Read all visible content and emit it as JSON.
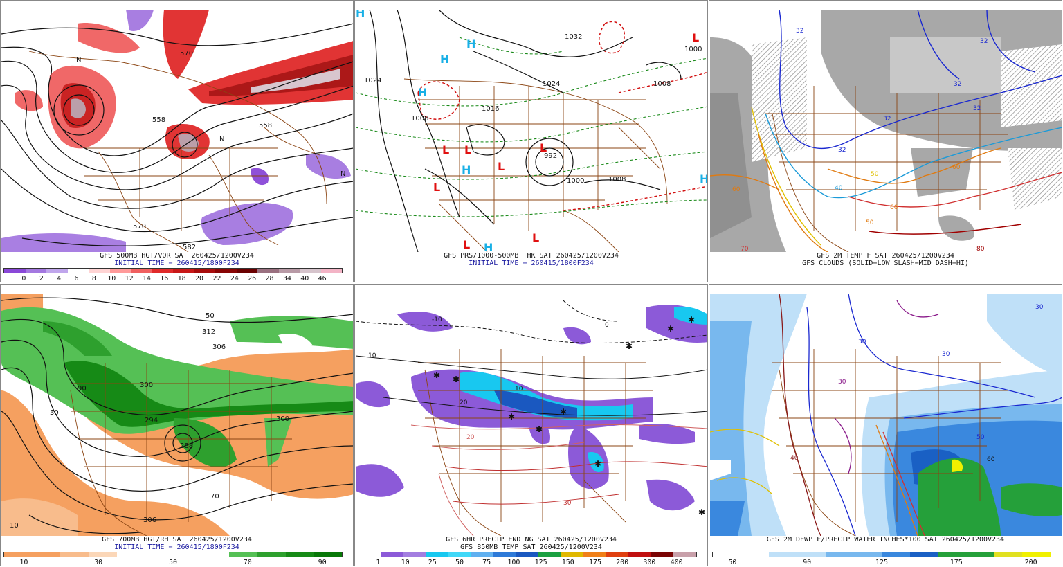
{
  "panels": [
    {
      "id": "p1",
      "caption1": "GFS 500MB HGT/VOR SAT 260425/1200V234",
      "caption2": "INITIAL TIME = 260415/1800F234",
      "colorbar": [
        "#8a48d8",
        "#a478e0",
        "#c0a6ec",
        "#ffffff",
        "#ffd4d4",
        "#ff9a9a",
        "#f06060",
        "#e02a2a",
        "#c81818",
        "#a80c0c",
        "#880404",
        "#6a0000",
        "#9a7080",
        "#b89aa6",
        "#d6c4cc",
        "#f3b4c6"
      ],
      "ticks": [
        "0",
        "2",
        "4",
        "6",
        "8",
        "10",
        "12",
        "14",
        "16",
        "18",
        "20",
        "22",
        "24",
        "26",
        "28",
        "34",
        "40",
        "46"
      ],
      "labels": [
        {
          "t": "570"
        },
        {
          "t": "558"
        },
        {
          "t": "558"
        },
        {
          "t": "570"
        },
        {
          "t": "582"
        },
        {
          "t": "N"
        },
        {
          "t": "N"
        },
        {
          "t": "N"
        }
      ]
    },
    {
      "id": "p2",
      "caption1": "GFS PRS/1000-500MB THK SAT 260425/1200V234",
      "caption2": "INITIAL TIME = 260415/1800F234",
      "labels": [
        {
          "t": "1024"
        },
        {
          "t": "1032"
        },
        {
          "t": "1024"
        },
        {
          "t": "1016"
        },
        {
          "t": "1008"
        },
        {
          "t": "1000"
        },
        {
          "t": "1008"
        },
        {
          "t": "992"
        },
        {
          "t": "1000"
        },
        {
          "t": "1008"
        }
      ],
      "highs": [
        "H",
        "H",
        "H",
        "H",
        "H",
        "H",
        "H"
      ],
      "lows": [
        "L",
        "L",
        "L",
        "L",
        "L",
        "L",
        "L",
        "L"
      ]
    },
    {
      "id": "p3",
      "caption1": "GFS 2M TEMP F SAT 260425/1200V234",
      "caption2": "GFS CLOUDS (SOLID=LOW SLASH=MID DASH=HI)",
      "labels": [
        {
          "t": "32"
        },
        {
          "t": "32"
        },
        {
          "t": "32"
        },
        {
          "t": "32"
        },
        {
          "t": "32"
        },
        {
          "t": "32"
        },
        {
          "t": "40"
        },
        {
          "t": "50"
        },
        {
          "t": "60"
        },
        {
          "t": "60"
        },
        {
          "t": "70"
        },
        {
          "t": "80"
        },
        {
          "t": "60"
        },
        {
          "t": "50"
        }
      ]
    },
    {
      "id": "p4",
      "caption1": "GFS 700MB HGT/RH SAT 260425/1200V234",
      "caption2": "INITIAL TIME = 260415/1800F234",
      "colorbar": [
        "#f5a060",
        "#f5a060",
        "#f8bc8c",
        "#fbd7b8",
        "#ffffff",
        "#ffffff",
        "#ffffff",
        "#ffffff",
        "#55c055",
        "#2ea02e",
        "#168a16",
        "#087808"
      ],
      "ticks": [
        "10",
        "30",
        "50",
        "70",
        "90"
      ],
      "labels": [
        {
          "t": "312"
        },
        {
          "t": "306"
        },
        {
          "t": "300"
        },
        {
          "t": "294"
        },
        {
          "t": "288"
        },
        {
          "t": "300"
        },
        {
          "t": "306"
        },
        {
          "t": "50"
        },
        {
          "t": "90"
        },
        {
          "t": "10"
        },
        {
          "t": "70"
        },
        {
          "t": "30"
        }
      ]
    },
    {
      "id": "p5",
      "caption1": "GFS 6HR PRECIP ENDING SAT 260425/1200V234",
      "caption2": "GFS 850MB TEMP SAT 260425/1200V234",
      "colorbar": [
        "#ffffff",
        "#8c5ad8",
        "#a37ee0",
        "#18c8f0",
        "#40d8f8",
        "#60b0f0",
        "#2e7ad8",
        "#1a58c0",
        "#1aa040",
        "#e0b800",
        "#f08018",
        "#e04010",
        "#c01010",
        "#7a0404",
        "#c8a0aa"
      ],
      "ticks": [
        "1",
        "10",
        "25",
        "50",
        "75",
        "100",
        "125",
        "150",
        "175",
        "200",
        "300",
        "400"
      ],
      "labels": [
        {
          "t": "10"
        },
        {
          "t": "20"
        },
        {
          "t": "0"
        },
        {
          "t": "-10"
        },
        {
          "t": "20"
        },
        {
          "t": "30"
        },
        {
          "t": "10"
        }
      ]
    },
    {
      "id": "p6",
      "caption1": "GFS 2M DEWP F/PRECIP WATER INCHES*100 SAT 260425/1200V234",
      "colorbar": [
        "#ffffff",
        "#ffffff",
        "#bfe0f8",
        "#bfe0f8",
        "#78b8ee",
        "#78b8ee",
        "#3a88de",
        "#1a60c4",
        "#25a03a",
        "#25a03a",
        "#e0e020",
        "#f0f000"
      ],
      "ticks": [
        "50",
        "90",
        "125",
        "175",
        "200"
      ],
      "labels": [
        {
          "t": "30"
        },
        {
          "t": "30"
        },
        {
          "t": "40"
        },
        {
          "t": "50"
        },
        {
          "t": "30"
        },
        {
          "t": "60"
        },
        {
          "t": "30"
        }
      ]
    }
  ]
}
